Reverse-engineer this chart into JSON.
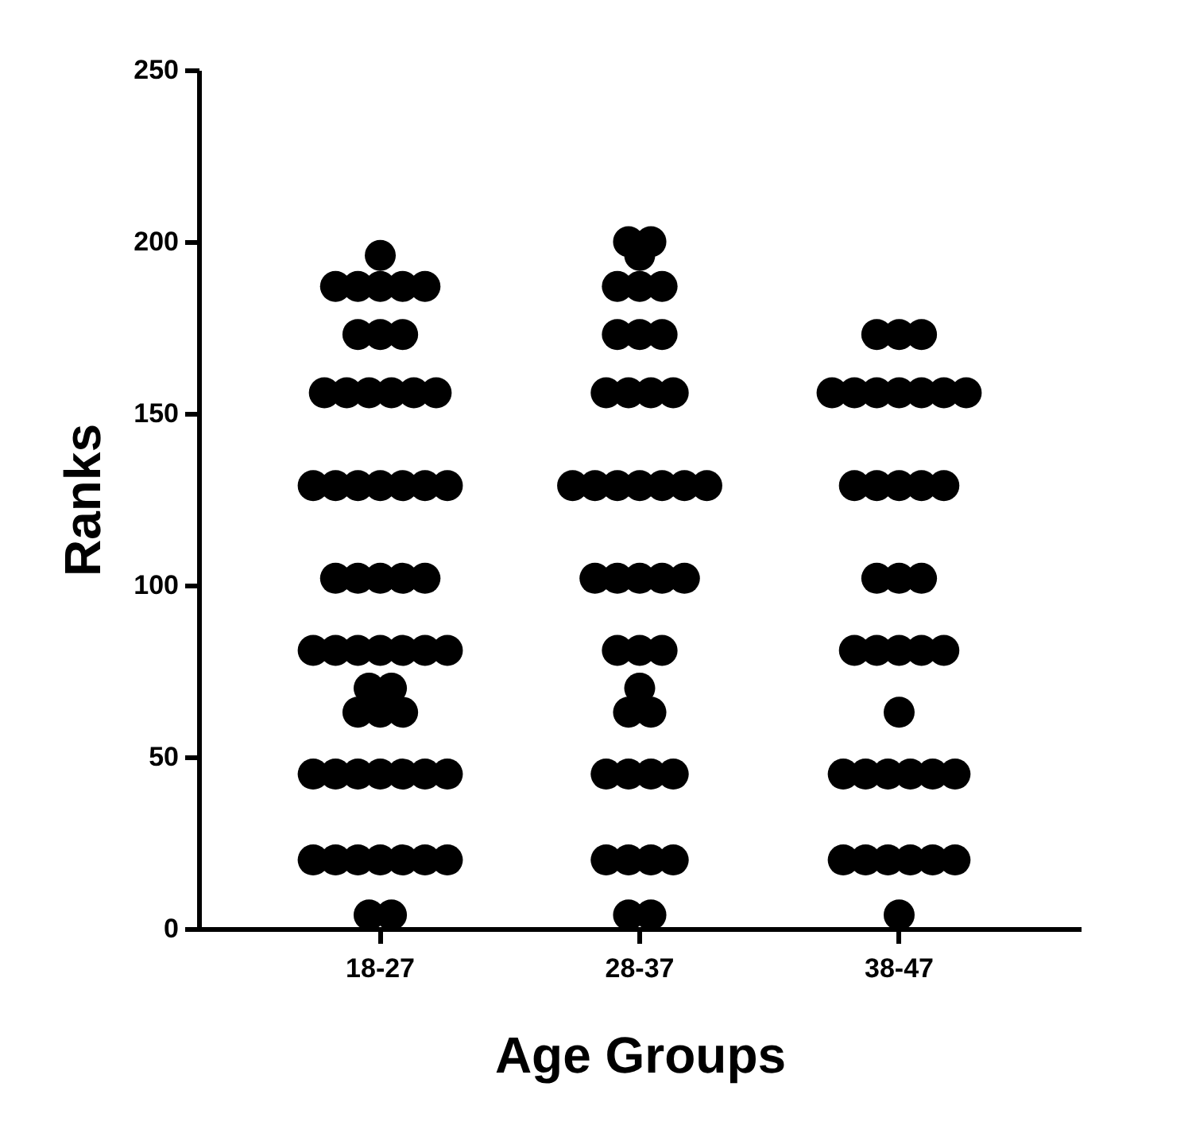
{
  "chart_data": {
    "type": "scatter",
    "xlabel": "Age Groups",
    "ylabel": "Ranks",
    "categories": [
      "18-27",
      "28-37",
      "38-47"
    ],
    "ylim": [
      0,
      250
    ],
    "yticks": [
      0,
      50,
      100,
      150,
      200,
      250
    ],
    "grid": false,
    "marker": "circle",
    "series": [
      {
        "type": "scatter",
        "color": "#000000",
        "x": [
          "18-27",
          "18-27",
          "18-27",
          "18-27",
          "18-27",
          "18-27",
          "18-27",
          "18-27",
          "18-27",
          "18-27",
          "18-27",
          "18-27",
          "18-27",
          "18-27",
          "18-27",
          "18-27",
          "18-27",
          "18-27",
          "18-27",
          "18-27",
          "18-27",
          "18-27",
          "18-27",
          "18-27",
          "18-27",
          "18-27",
          "18-27",
          "18-27",
          "18-27",
          "18-27",
          "18-27",
          "18-27",
          "18-27",
          "18-27",
          "18-27",
          "18-27",
          "18-27",
          "18-27",
          "18-27",
          "18-27",
          "18-27",
          "18-27",
          "18-27",
          "18-27",
          "18-27",
          "18-27",
          "18-27",
          "18-27",
          "18-27",
          "18-27",
          "18-27",
          "18-27",
          "18-27",
          "18-27",
          "18-27",
          "28-37",
          "28-37",
          "28-37",
          "28-37",
          "28-37",
          "28-37",
          "28-37",
          "28-37",
          "28-37",
          "28-37",
          "28-37",
          "28-37",
          "28-37",
          "28-37",
          "28-37",
          "28-37",
          "28-37",
          "28-37",
          "28-37",
          "28-37",
          "28-37",
          "28-37",
          "28-37",
          "28-37",
          "28-37",
          "28-37",
          "28-37",
          "28-37",
          "28-37",
          "28-37",
          "28-37",
          "28-37",
          "28-37",
          "28-37",
          "28-37",
          "28-37",
          "28-37",
          "28-37",
          "28-37",
          "28-37",
          "28-37",
          "38-47",
          "38-47",
          "38-47",
          "38-47",
          "38-47",
          "38-47",
          "38-47",
          "38-47",
          "38-47",
          "38-47",
          "38-47",
          "38-47",
          "38-47",
          "38-47",
          "38-47",
          "38-47",
          "38-47",
          "38-47",
          "38-47",
          "38-47",
          "38-47",
          "38-47",
          "38-47",
          "38-47",
          "38-47",
          "38-47",
          "38-47",
          "38-47",
          "38-47",
          "38-47",
          "38-47",
          "38-47",
          "38-47",
          "38-47",
          "38-47",
          "38-47",
          "38-47"
        ],
        "values": [
          196,
          187,
          187,
          187,
          187,
          187,
          173,
          173,
          173,
          156,
          156,
          156,
          156,
          156,
          156,
          129,
          129,
          129,
          129,
          129,
          129,
          129,
          102,
          102,
          102,
          102,
          102,
          81,
          81,
          81,
          81,
          81,
          81,
          81,
          70,
          70,
          63,
          63,
          63,
          45,
          45,
          45,
          45,
          45,
          45,
          45,
          20,
          20,
          20,
          20,
          20,
          20,
          20,
          4,
          4,
          200,
          200,
          196,
          187,
          187,
          187,
          173,
          173,
          173,
          156,
          156,
          156,
          156,
          129,
          129,
          129,
          129,
          129,
          129,
          129,
          102,
          102,
          102,
          102,
          102,
          81,
          81,
          81,
          70,
          63,
          63,
          45,
          45,
          45,
          45,
          20,
          20,
          20,
          20,
          4,
          4,
          173,
          173,
          173,
          156,
          156,
          156,
          156,
          156,
          156,
          156,
          129,
          129,
          129,
          129,
          129,
          102,
          102,
          102,
          81,
          81,
          81,
          81,
          81,
          63,
          45,
          45,
          45,
          45,
          45,
          45,
          20,
          20,
          20,
          20,
          20,
          20,
          4
        ]
      }
    ]
  }
}
